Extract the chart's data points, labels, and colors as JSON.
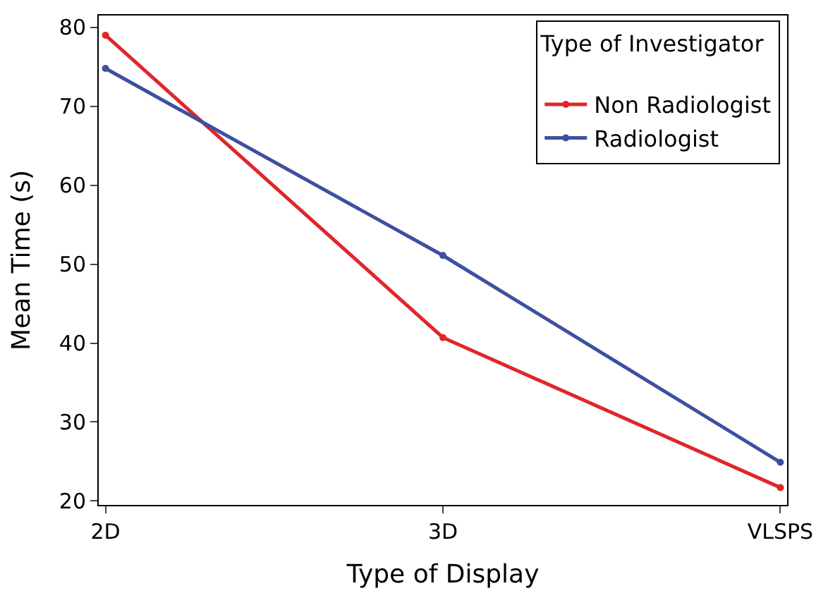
{
  "chart_data": {
    "type": "line",
    "xlabel": "Type of Display",
    "ylabel": "Mean Time (s)",
    "legend_title": "Type of Investigator",
    "categories": [
      "2D",
      "3D",
      "VLSPS"
    ],
    "series": [
      {
        "name": "Non Radiologist",
        "color": "#e0262a",
        "values": [
          79.0,
          40.7,
          21.7
        ]
      },
      {
        "name": "Radiologist",
        "color": "#3f4fa0",
        "values": [
          74.8,
          51.1,
          24.9
        ]
      }
    ],
    "ylim": [
      19.5,
      81.5
    ],
    "yticks": [
      20,
      30,
      40,
      50,
      60,
      70,
      80
    ],
    "legend": "top right",
    "marker": "circle",
    "line_style": "solid"
  }
}
